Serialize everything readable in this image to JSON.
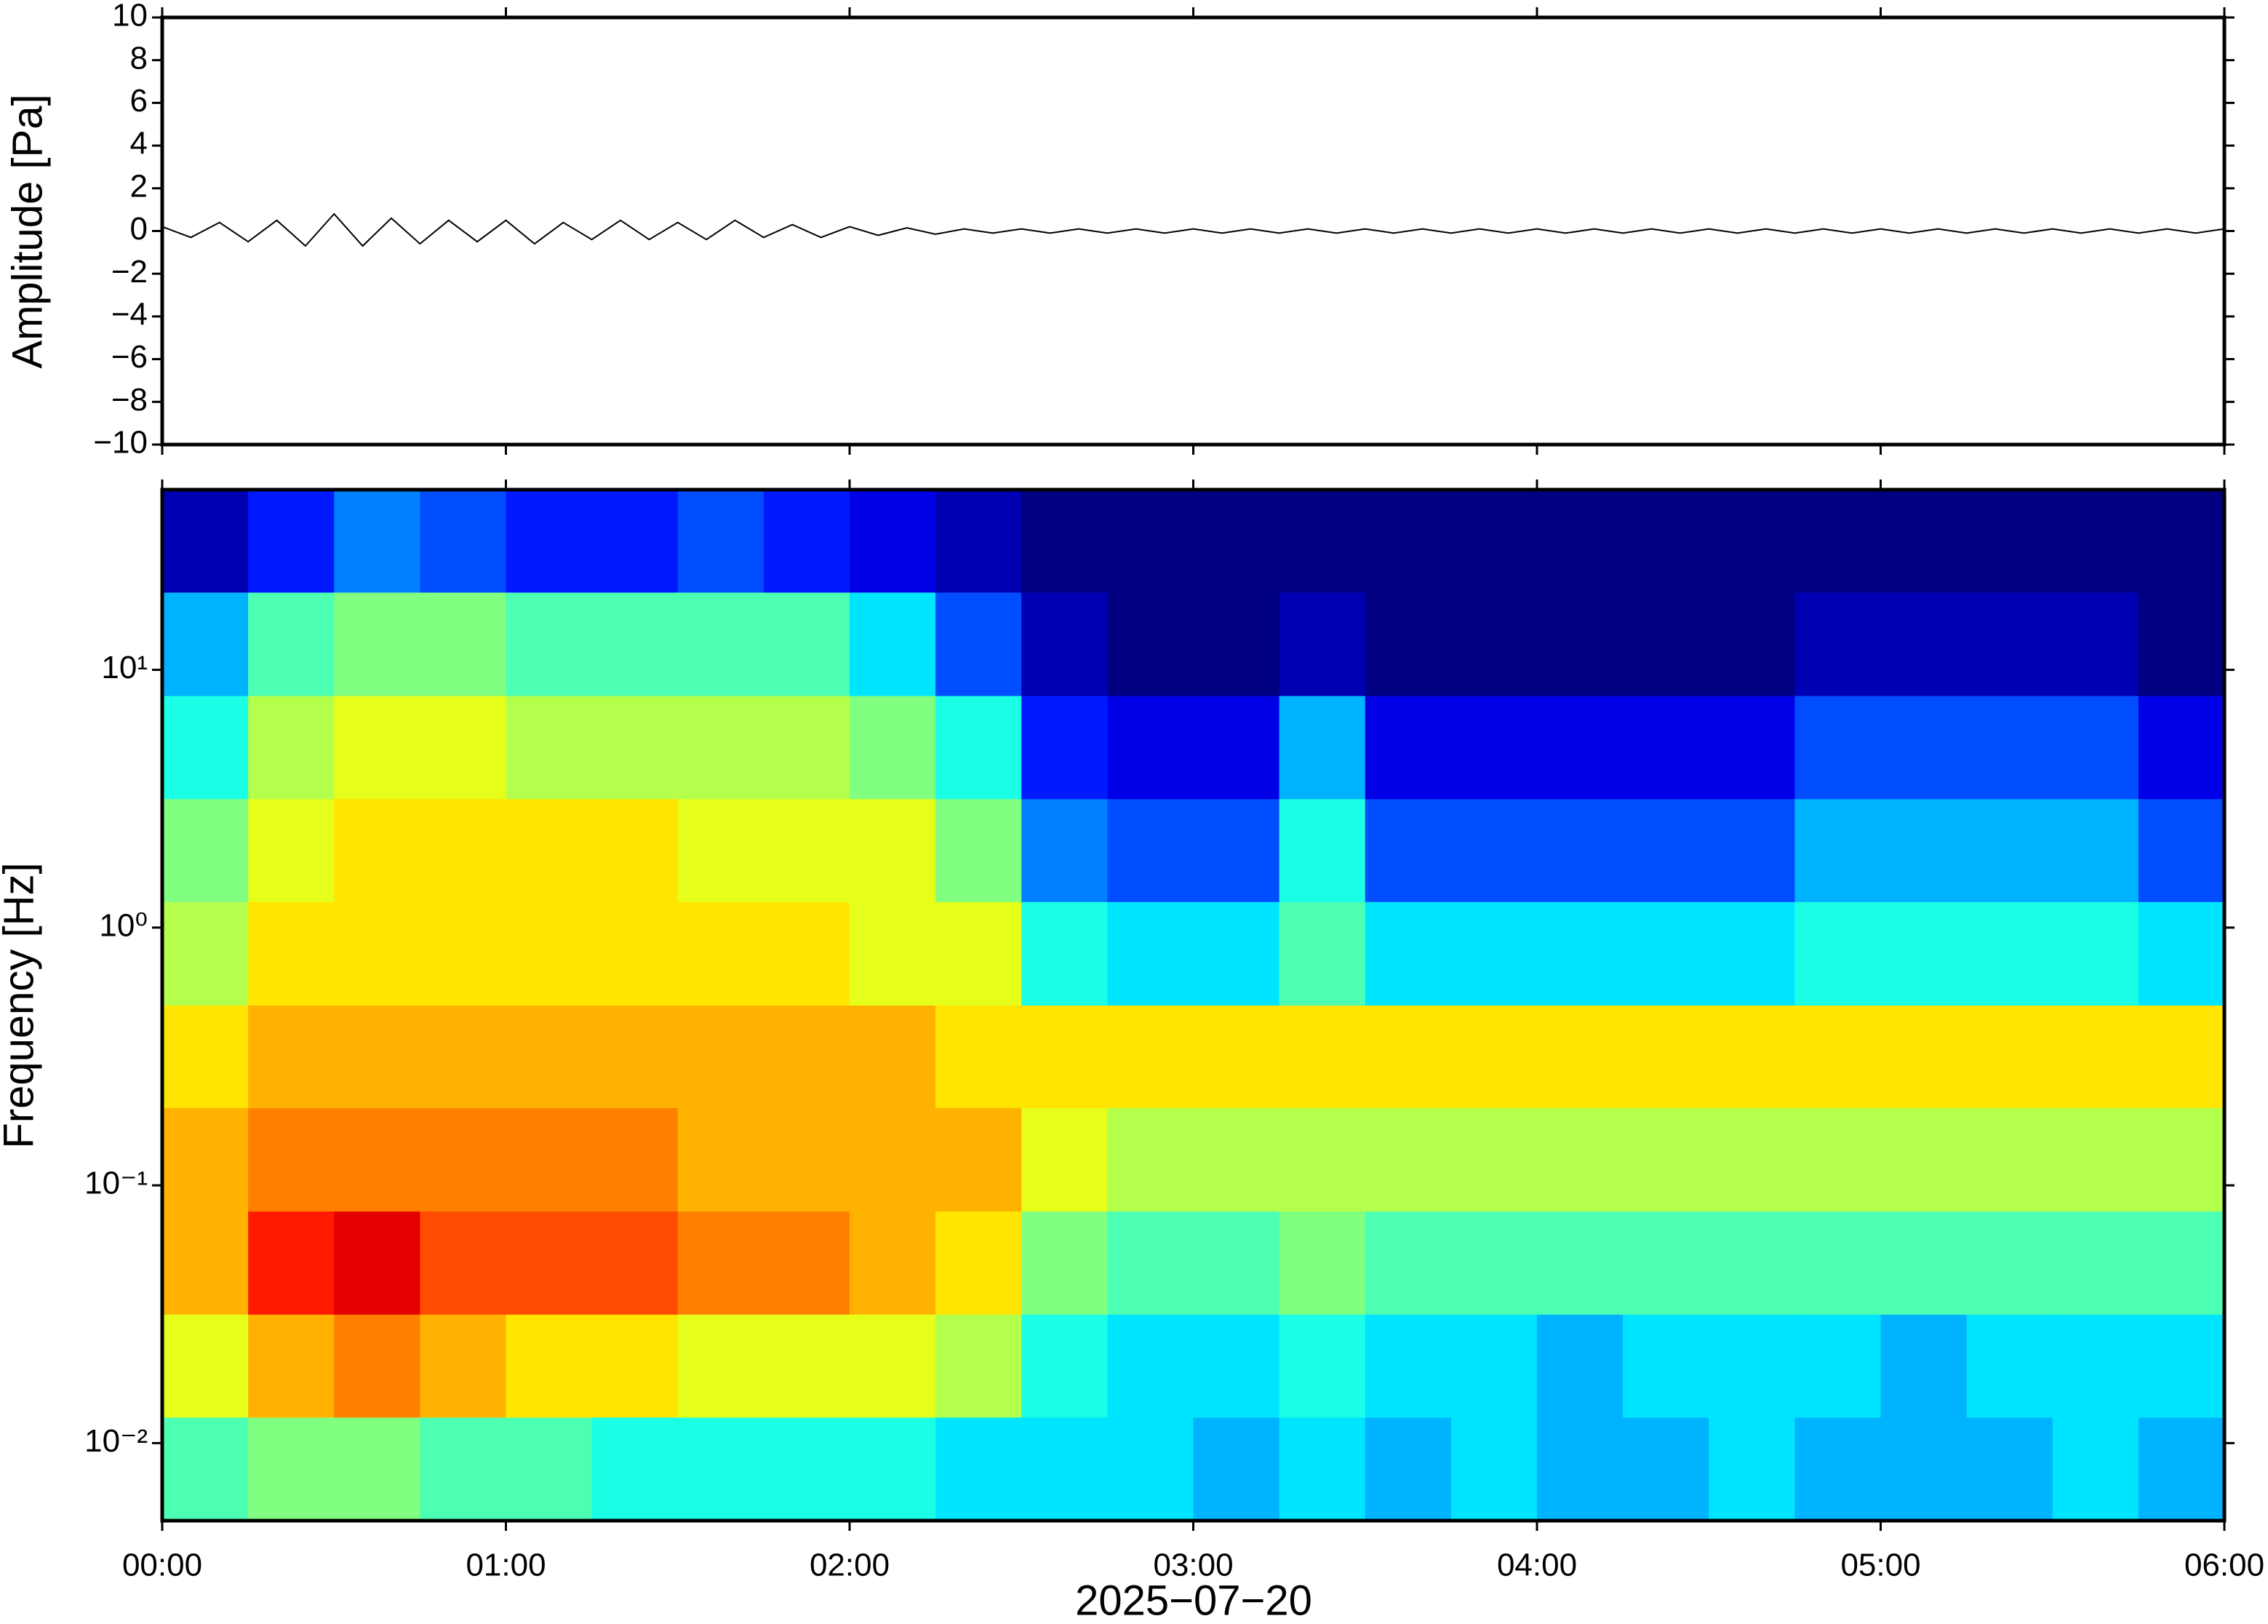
{
  "chart_data": [
    {
      "type": "line",
      "ylabel": "Amplitude [Pa]",
      "color": "#000000",
      "xlim": [
        0,
        360
      ],
      "ylim": [
        -10,
        10
      ],
      "yticks": [
        {
          "value": -10,
          "label": "−10"
        },
        {
          "value": -8,
          "label": "−8"
        },
        {
          "value": -6,
          "label": "−6"
        },
        {
          "value": -4,
          "label": "−4"
        },
        {
          "value": -2,
          "label": "−2"
        },
        0,
        2,
        4,
        6,
        8,
        10
      ],
      "x": [
        0,
        5,
        10,
        15,
        20,
        25,
        30,
        35,
        40,
        45,
        50,
        55,
        60,
        65,
        70,
        75,
        80,
        85,
        90,
        95,
        100,
        105,
        110,
        115,
        120,
        125,
        130,
        135,
        140,
        145,
        150,
        155,
        160,
        165,
        170,
        175,
        180,
        185,
        190,
        195,
        200,
        205,
        210,
        215,
        220,
        225,
        230,
        235,
        240,
        245,
        250,
        255,
        260,
        265,
        270,
        275,
        280,
        285,
        290,
        295,
        300,
        305,
        310,
        315,
        320,
        325,
        330,
        335,
        340,
        345,
        350,
        355,
        360
      ],
      "values": [
        0.2,
        -0.3,
        0.4,
        -0.5,
        0.5,
        -0.7,
        0.8,
        -0.7,
        0.6,
        -0.6,
        0.5,
        -0.5,
        0.5,
        -0.6,
        0.4,
        -0.4,
        0.5,
        -0.4,
        0.4,
        -0.4,
        0.5,
        -0.3,
        0.3,
        -0.3,
        0.2,
        -0.2,
        0.15,
        -0.15,
        0.1,
        -0.1,
        0.1,
        -0.1,
        0.1,
        -0.1,
        0.1,
        -0.1,
        0.1,
        -0.1,
        0.1,
        -0.1,
        0.1,
        -0.1,
        0.1,
        -0.1,
        0.1,
        -0.1,
        0.1,
        -0.1,
        0.1,
        -0.1,
        0.1,
        -0.1,
        0.1,
        -0.1,
        0.1,
        -0.1,
        0.1,
        -0.1,
        0.1,
        -0.1,
        0.1,
        -0.1,
        0.1,
        -0.1,
        0.1,
        -0.1,
        0.1,
        -0.1,
        0.1,
        -0.1,
        0.1,
        -0.1,
        0.1
      ]
    },
    {
      "type": "heatmap",
      "ylabel": "Frequency [Hz]",
      "xlabel": "2025−07−20",
      "colormap": "jet",
      "ylog": true,
      "xlim": [
        0,
        360
      ],
      "ylim": [
        0.005,
        50
      ],
      "zlim": [
        0,
        10
      ],
      "xticks": [
        {
          "value": 0,
          "label": "00:00"
        },
        {
          "value": 60,
          "label": "01:00"
        },
        {
          "value": 120,
          "label": "02:00"
        },
        {
          "value": 180,
          "label": "03:00"
        },
        {
          "value": 240,
          "label": "04:00"
        },
        {
          "value": 300,
          "label": "05:00"
        },
        {
          "value": 360,
          "label": "06:00"
        }
      ],
      "yticks": [
        {
          "value": 0.01,
          "label": "10⁻²"
        },
        {
          "value": 0.1,
          "label": "10⁻¹"
        },
        {
          "value": 1,
          "label": "10⁰"
        },
        {
          "value": 10,
          "label": "10¹"
        }
      ],
      "xbins": [
        0,
        15,
        30,
        45,
        60,
        75,
        90,
        105,
        120,
        135,
        150,
        165,
        180,
        195,
        210,
        225,
        240,
        255,
        270,
        285,
        300,
        315,
        330,
        345,
        360
      ],
      "ybins": [
        0.005,
        0.0126,
        0.0316,
        0.0794,
        0.2,
        0.5,
        1.26,
        3.16,
        7.94,
        20,
        50
      ],
      "values": [
        [
          4.5,
          5,
          5,
          4.5,
          4.5,
          4,
          4,
          4,
          4,
          3.5,
          3.5,
          3.5,
          3,
          3.5,
          3,
          3.5,
          3,
          3,
          3.5,
          3,
          3,
          3,
          3.5,
          3
        ],
        [
          6,
          7,
          7.5,
          7,
          6.5,
          6.5,
          6,
          6,
          6,
          5.5,
          4,
          3.5,
          3.5,
          4,
          3.5,
          3.5,
          3,
          3.5,
          3.5,
          3.5,
          3,
          3.5,
          3.5,
          3.5
        ],
        [
          7,
          8.5,
          9,
          8,
          8,
          8,
          7.5,
          7.5,
          7,
          6.5,
          5,
          4.5,
          4.5,
          5,
          4.5,
          4.5,
          4.5,
          4.5,
          4.5,
          4.5,
          4.5,
          4.5,
          4.5,
          4.5
        ],
        [
          7,
          7.5,
          7.5,
          7.5,
          7.5,
          7.5,
          7,
          7,
          7,
          7,
          6,
          5.5,
          5.5,
          5.5,
          5.5,
          5.5,
          5.5,
          5.5,
          5.5,
          5.5,
          5.5,
          5.5,
          5.5,
          5.5
        ],
        [
          6.5,
          7,
          7,
          7,
          7,
          7,
          7,
          7,
          7,
          6.5,
          6.5,
          6.5,
          6.5,
          6.5,
          6.5,
          6.5,
          6.5,
          6.5,
          6.5,
          6.5,
          6.5,
          6.5,
          6.5,
          6.5
        ],
        [
          5.5,
          6.5,
          6.5,
          6.5,
          6.5,
          6.5,
          6.5,
          6.5,
          6,
          6,
          4,
          3.5,
          3.5,
          4.5,
          3.5,
          3.5,
          3.5,
          3.5,
          3.5,
          4,
          4,
          4,
          4,
          3.5
        ],
        [
          5,
          6,
          6.5,
          6.5,
          6.5,
          6.5,
          6,
          6,
          6,
          5,
          2.5,
          2,
          2,
          4,
          2,
          2,
          2,
          2,
          2,
          3,
          3,
          3,
          3,
          2
        ],
        [
          4,
          5.5,
          6,
          6,
          5.5,
          5.5,
          5.5,
          5.5,
          5,
          4,
          1.5,
          1,
          1,
          3,
          1,
          1,
          1,
          1,
          1,
          2,
          2,
          2,
          2,
          1
        ],
        [
          3,
          4.5,
          5,
          5,
          4.5,
          4.5,
          4.5,
          4.5,
          3.5,
          2,
          0.5,
          0,
          0,
          0.5,
          0,
          0,
          0,
          0,
          0,
          0.5,
          0.5,
          0.5,
          0.5,
          0
        ],
        [
          0.5,
          1.5,
          2.5,
          2,
          1.5,
          1.5,
          2,
          1.5,
          1,
          0.5,
          0,
          0,
          0,
          0,
          0,
          0,
          0,
          0,
          0,
          0,
          0,
          0,
          0,
          0
        ]
      ]
    }
  ]
}
